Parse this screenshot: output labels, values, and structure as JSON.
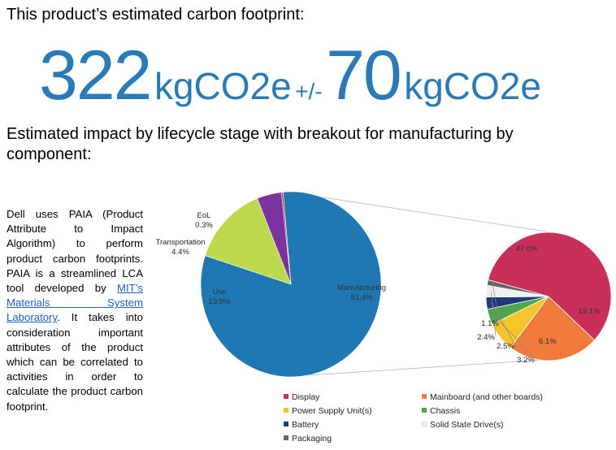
{
  "header": {
    "title": "This product’s estimated carbon footprint:"
  },
  "footprint": {
    "value": "322",
    "unit": "kgCO2e",
    "plus_minus": "+/-",
    "uncertainty": "70",
    "uncertainty_unit": "kgCO2e"
  },
  "subtitle": "Estimated impact by lifecycle stage with breakout for manufacturing by component:",
  "description": {
    "before_link": "Dell uses PAIA (Product Attribute to Impact Algorithm) to perform product carbon footprints. PAIA is a streamlined LCA tool developed by ",
    "link_text": "MIT’s Materials System Laboratory",
    "after_link": ". It takes into consideration important attributes of the product which can be correlated to activities in order to calculate the product carbon footprint."
  },
  "chart_data": [
    {
      "type": "pie",
      "slices": [
        {
          "name": "Manufacturing",
          "label": "81.4%",
          "value": 81.4,
          "color": "#1f78b4"
        },
        {
          "name": "Use",
          "label": "13.9%",
          "value": 13.9,
          "color": "#bcd84c"
        },
        {
          "name": "Transportation",
          "label": "4.4%",
          "value": 4.4,
          "color": "#7b33a0"
        },
        {
          "name": "EoL",
          "label": "0.3%",
          "value": 0.3,
          "color": "#c0392b"
        }
      ]
    },
    {
      "type": "pie",
      "slices": [
        {
          "name": "Display",
          "label": "47.0%",
          "value": 47.0,
          "color": "#c8305a"
        },
        {
          "name": "Mainboard (and other boards)",
          "label": "19.1%",
          "value": 19.1,
          "color": "#f07b3a"
        },
        {
          "name": "Power Supply Unit(s)",
          "label": "6.1%",
          "value": 6.1,
          "color": "#f5c52a"
        },
        {
          "name": "Chassis",
          "label": "3.2%",
          "value": 3.2,
          "color": "#4fa64a"
        },
        {
          "name": "Battery",
          "label": "2.5%",
          "value": 2.5,
          "color": "#1f3a78"
        },
        {
          "name": "Solid State Drive(s)",
          "label": "2.4%",
          "value": 2.4,
          "color": "#f0f0f0"
        },
        {
          "name": "Packaging",
          "label": "1.1%",
          "value": 1.1,
          "color": "#666666"
        }
      ]
    }
  ]
}
